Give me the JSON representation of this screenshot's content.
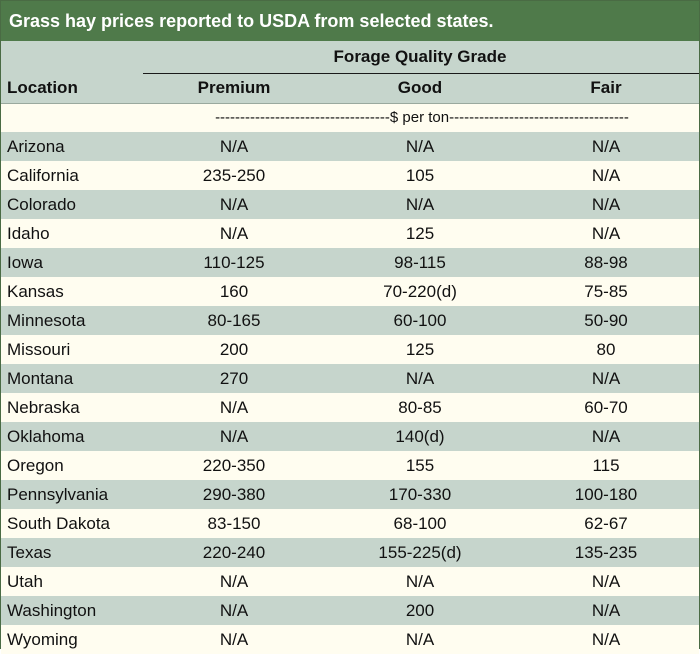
{
  "title": "Grass hay prices reported to USDA from selected states.",
  "header": {
    "group_label": "Forage Quality Grade",
    "location_label": "Location",
    "premium_label": "Premium",
    "good_label": "Good",
    "fair_label": "Fair",
    "unit_text": "-----------------------------------$ per ton------------------------------------"
  },
  "rows": [
    {
      "location": "Arizona",
      "premium": "N/A",
      "good": "N/A",
      "fair": "N/A"
    },
    {
      "location": "California",
      "premium": "235-250",
      "good": "105",
      "fair": "N/A"
    },
    {
      "location": "Colorado",
      "premium": "N/A",
      "good": "N/A",
      "fair": "N/A"
    },
    {
      "location": "Idaho",
      "premium": "N/A",
      "good": "125",
      "fair": "N/A"
    },
    {
      "location": "Iowa",
      "premium": "110-125",
      "good": "98-115",
      "fair": "88-98"
    },
    {
      "location": "Kansas",
      "premium": "160",
      "good": "70-220(d)",
      "fair": "75-85"
    },
    {
      "location": "Minnesota",
      "premium": "80-165",
      "good": "60-100",
      "fair": "50-90"
    },
    {
      "location": "Missouri",
      "premium": "200",
      "good": "125",
      "fair": "80"
    },
    {
      "location": "Montana",
      "premium": "270",
      "good": "N/A",
      "fair": "N/A"
    },
    {
      "location": "Nebraska",
      "premium": "N/A",
      "good": "80-85",
      "fair": "60-70"
    },
    {
      "location": "Oklahoma",
      "premium": "N/A",
      "good": "140(d)",
      "fair": "N/A"
    },
    {
      "location": "Oregon",
      "premium": "220-350",
      "good": "155",
      "fair": "115"
    },
    {
      "location": "Pennsylvania",
      "premium": "290-380",
      "good": "170-330",
      "fair": "100-180"
    },
    {
      "location": "South Dakota",
      "premium": "83-150",
      "good": "68-100",
      "fair": "62-67"
    },
    {
      "location": "Texas",
      "premium": "220-240",
      "good": "155-225(d)",
      "fair": "135-235"
    },
    {
      "location": "Utah",
      "premium": "N/A",
      "good": "N/A",
      "fair": "N/A"
    },
    {
      "location": "Washington",
      "premium": "N/A",
      "good": "200",
      "fair": "N/A"
    },
    {
      "location": "Wyoming",
      "premium": "N/A",
      "good": "N/A",
      "fair": "N/A"
    }
  ],
  "colors": {
    "title_bg": "#4f7a4a",
    "band_dark": "#c6d5cc",
    "band_light": "#fffdf0"
  }
}
